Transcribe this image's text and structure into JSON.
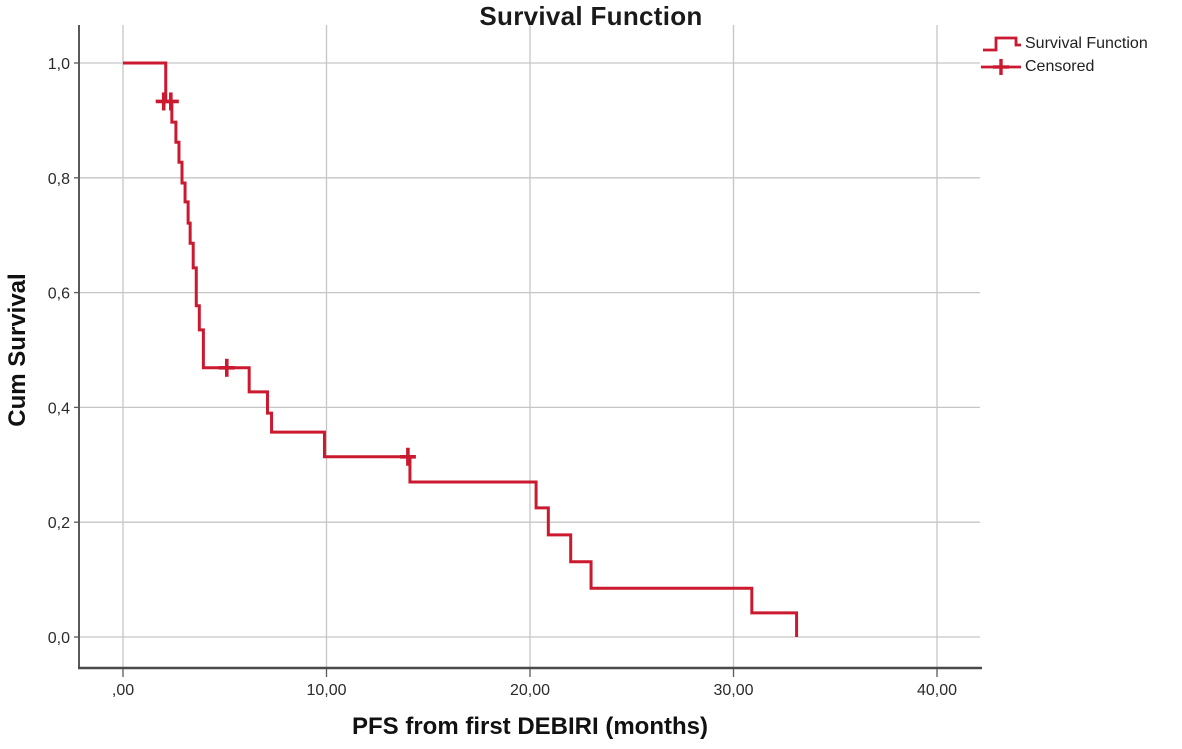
{
  "chart_data": {
    "type": "line",
    "subtype": "kaplan-meier-survival-step",
    "title": "Survival Function",
    "xlabel": "PFS from first DEBIRI (months)",
    "ylabel": "Cum Survival",
    "xlim": [
      0,
      42.5
    ],
    "ylim": [
      0,
      1.05
    ],
    "grid": true,
    "legend_position": "top-right-outside",
    "x_ticks": {
      "values": [
        0,
        10,
        20,
        30,
        40
      ],
      "labels": [
        ",00",
        "10,00",
        "20,00",
        "30,00",
        "40,00"
      ]
    },
    "y_ticks": {
      "values": [
        0,
        0.2,
        0.4,
        0.6,
        0.8,
        1.0
      ],
      "labels": [
        "0,0",
        "0,2",
        "0,4",
        "0,6",
        "0,8",
        "1,0"
      ]
    },
    "series": [
      {
        "name": "Survival Function",
        "type": "step",
        "color": "#cb1a2f",
        "points": [
          [
            0,
            1.0
          ],
          [
            2.1,
            0.933
          ],
          [
            2.4,
            0.897
          ],
          [
            2.6,
            0.862
          ],
          [
            2.75,
            0.827
          ],
          [
            2.9,
            0.791
          ],
          [
            3.05,
            0.758
          ],
          [
            3.2,
            0.721
          ],
          [
            3.3,
            0.686
          ],
          [
            3.45,
            0.643
          ],
          [
            3.6,
            0.577
          ],
          [
            3.75,
            0.535
          ],
          [
            3.95,
            0.469
          ],
          [
            6.2,
            0.427
          ],
          [
            7.1,
            0.39
          ],
          [
            7.3,
            0.357
          ],
          [
            9.9,
            0.314
          ],
          [
            14.1,
            0.27
          ],
          [
            20.3,
            0.225
          ],
          [
            20.9,
            0.178
          ],
          [
            22.0,
            0.131
          ],
          [
            23.0,
            0.085
          ],
          [
            30.9,
            0.042
          ],
          [
            33.1,
            0.0
          ]
        ]
      },
      {
        "name": "Censored",
        "type": "plus-markers",
        "color": "#cb1a2f",
        "points": [
          [
            2.0,
            0.933
          ],
          [
            2.35,
            0.933
          ],
          [
            5.1,
            0.469
          ],
          [
            14.0,
            0.314
          ]
        ]
      }
    ]
  },
  "colors": {
    "curve": "#cb1a2f",
    "grid": "#c6c6c6",
    "axis": "#5a5a5a",
    "tick_text": "#2b2b2b"
  }
}
